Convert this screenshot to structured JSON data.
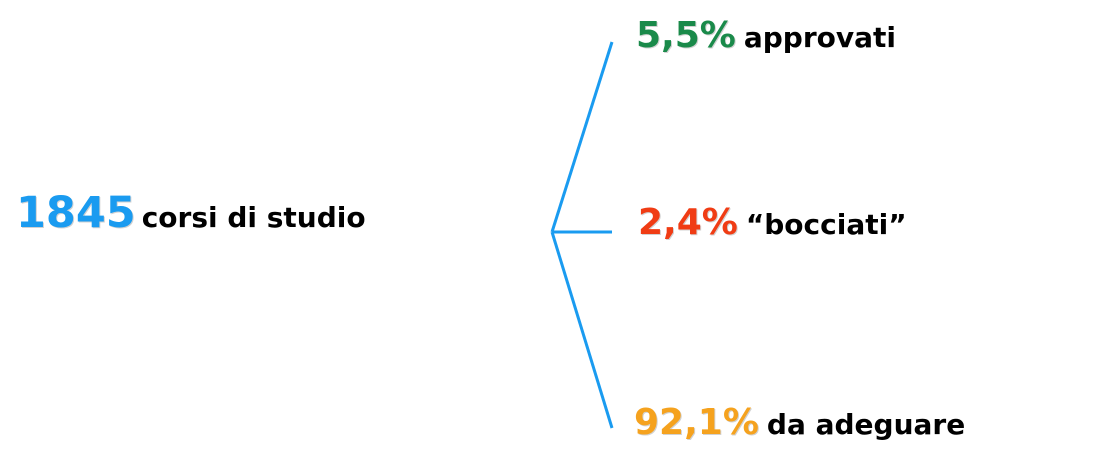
{
  "root": {
    "number": "1845",
    "label": "corsi di studio",
    "color": "#1a9bf0"
  },
  "branches": [
    {
      "percent": "5,5%",
      "label": "approvati",
      "color": "#1a8a4a"
    },
    {
      "percent": "2,4%",
      "label": "“bocciati”",
      "color": "#f03c14"
    },
    {
      "percent": "92,1%",
      "label": "da adeguare",
      "color": "#f5a21e"
    }
  ],
  "connector_color": "#1a9bf0"
}
